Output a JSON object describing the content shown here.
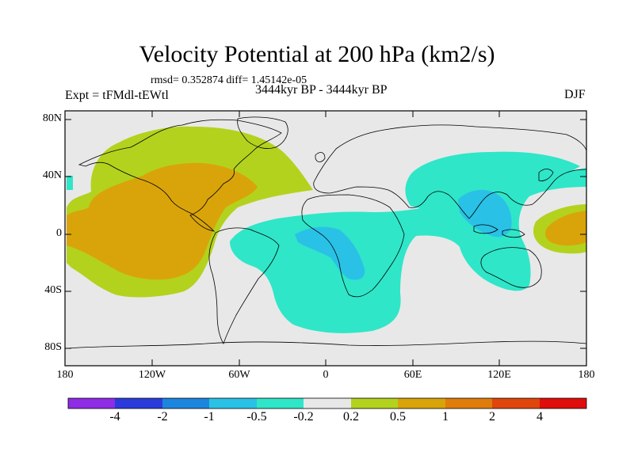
{
  "title": "Velocity Potential at 200 hPa (km2/s)",
  "stats": "rmsd= 0.352874 diff= 1.45142e-05",
  "experiment": "Expt = tFMdl-tEWtl",
  "period": "3444kyr BP - 3444kyr BP",
  "season": "DJF",
  "y_axis": {
    "ticks": [
      "80N",
      "40N",
      "0",
      "40S",
      "80S"
    ]
  },
  "x_axis": {
    "ticks": [
      "180",
      "120W",
      "60W",
      "0",
      "60E",
      "120E",
      "180"
    ]
  },
  "colorbar": {
    "colors": [
      "#8f2ce6",
      "#2b3bdb",
      "#1c86de",
      "#2ac1e6",
      "#2fe6c8",
      "#e8e8e8",
      "#b3d21e",
      "#d9a40a",
      "#e07c0c",
      "#e0450c",
      "#e00d0d"
    ],
    "labels": [
      "-4",
      "-2",
      "-1",
      "-0.5",
      "-0.2",
      "0.2",
      "0.5",
      "1",
      "2",
      "4"
    ]
  },
  "map_colors": {
    "background": "#e8e8e8",
    "positive_weak": "#b3d21e",
    "positive_mid": "#d9a40a",
    "negative_weak": "#2fe6c8",
    "negative_mid": "#2ac1e6"
  }
}
